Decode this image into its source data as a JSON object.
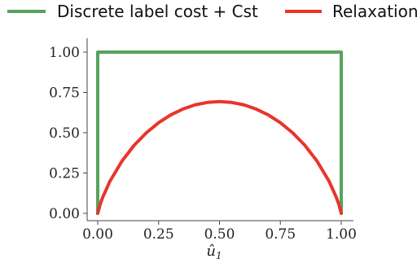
{
  "chart_data": {
    "type": "line",
    "title": "",
    "xlabel": "û",
    "xlabel_subscript": "1",
    "ylabel": "",
    "xlim": [
      0,
      1
    ],
    "ylim": [
      0,
      1
    ],
    "x_ticks": [
      0,
      0.25,
      0.5,
      0.75,
      1
    ],
    "x_tick_labels": [
      "0.00",
      "0.25",
      "0.50",
      "0.75",
      "1.00"
    ],
    "y_ticks": [
      0,
      0.25,
      0.5,
      0.75,
      1
    ],
    "y_tick_labels": [
      "0.00",
      "0.25",
      "0.50",
      "0.75",
      "1.00"
    ],
    "grid": false,
    "legend_position": "top",
    "series": [
      {
        "name": "Discrete label cost + Cst",
        "color": "#55a35c",
        "x": [
          0,
          0,
          1,
          1
        ],
        "y": [
          0,
          1,
          1,
          0
        ]
      },
      {
        "name": "Relaxation",
        "color": "#e8352b",
        "x": [
          0,
          0.01,
          0.02,
          0.05,
          0.1,
          0.15,
          0.2,
          0.25,
          0.3,
          0.35,
          0.4,
          0.45,
          0.5,
          0.55,
          0.6,
          0.65,
          0.7,
          0.75,
          0.8,
          0.85,
          0.9,
          0.95,
          0.98,
          0.99,
          1
        ],
        "y": [
          0,
          0.056,
          0.098,
          0.199,
          0.325,
          0.423,
          0.5,
          0.562,
          0.611,
          0.647,
          0.673,
          0.688,
          0.693,
          0.688,
          0.673,
          0.647,
          0.611,
          0.562,
          0.5,
          0.423,
          0.325,
          0.199,
          0.098,
          0.056,
          0
        ]
      }
    ]
  }
}
